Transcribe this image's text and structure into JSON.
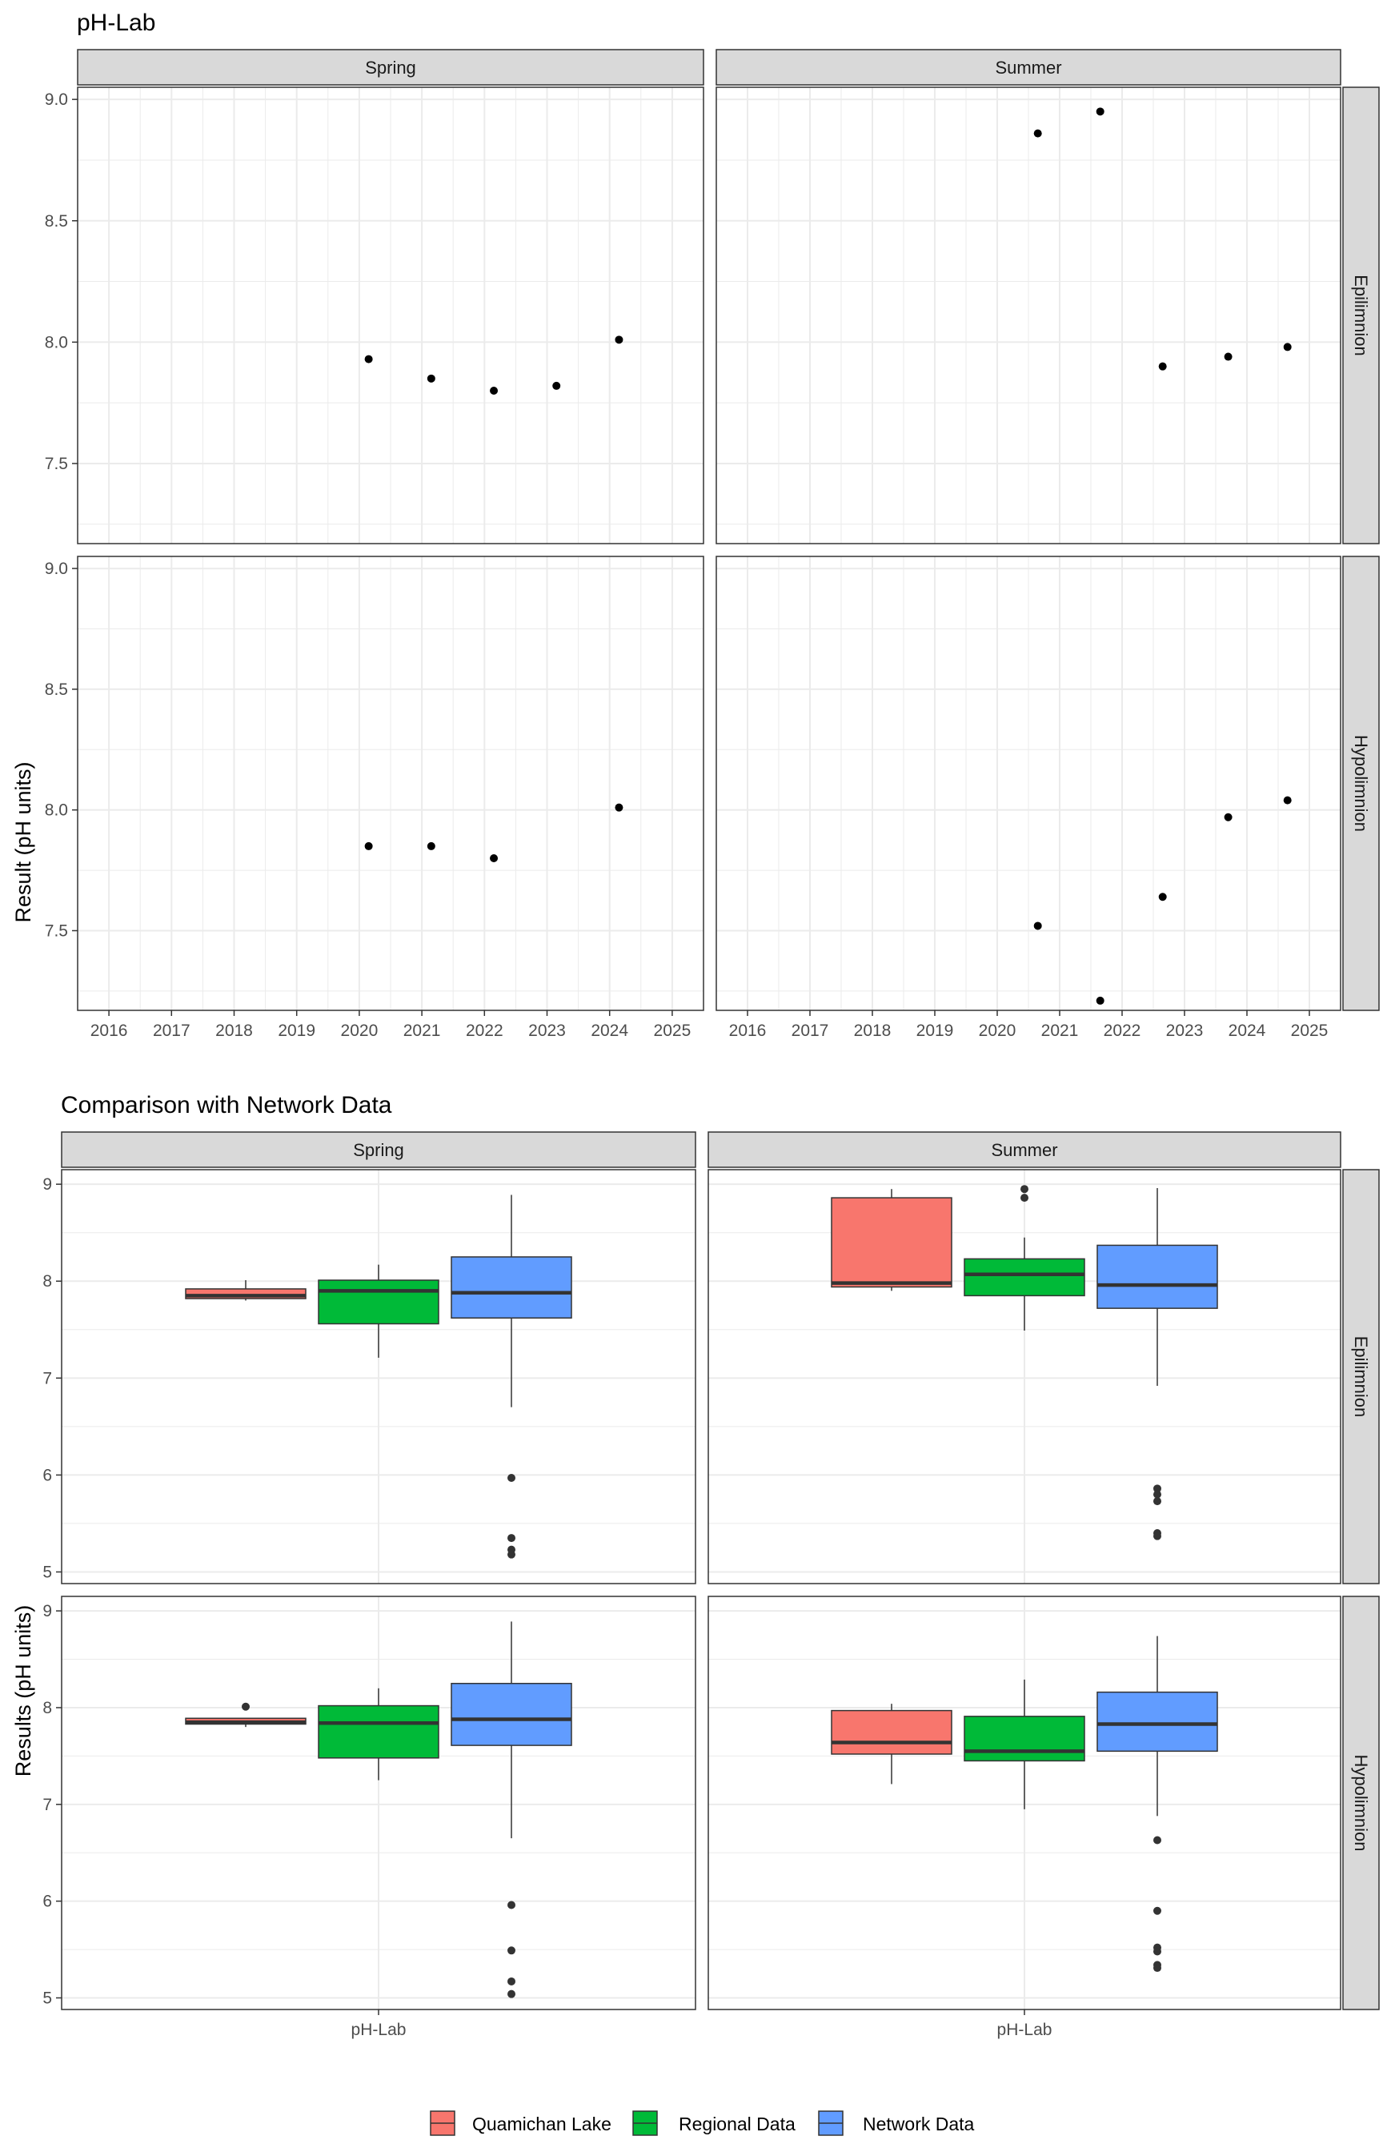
{
  "colors": {
    "strip_fill": "#d9d9d9",
    "grid": "#ebebeb",
    "point": "#000000",
    "box_outlier": "#333333",
    "quamichan": "#F8766D",
    "regional": "#00BA38",
    "network": "#619CFF"
  },
  "chart_data": [
    {
      "type": "scatter",
      "title": "pH-Lab",
      "ylabel": "Result (pH units)",
      "xlabel": "",
      "xlim": [
        2015.5,
        2025.5
      ],
      "ylim": [
        7.17,
        9.05
      ],
      "x_ticks": [
        "2016",
        "2017",
        "2018",
        "2019",
        "2020",
        "2021",
        "2022",
        "2023",
        "2024",
        "2025"
      ],
      "y_ticks": [
        "7.5",
        "8.0",
        "8.5",
        "9.0"
      ],
      "grid": true,
      "columns": [
        "Spring",
        "Summer"
      ],
      "rows": [
        "Epilimnion",
        "Hypolimnion"
      ],
      "panels": [
        {
          "column": "Spring",
          "row": "Epilimnion",
          "points": [
            [
              2020.15,
              7.93
            ],
            [
              2021.15,
              7.85
            ],
            [
              2022.15,
              7.8
            ],
            [
              2023.15,
              7.82
            ],
            [
              2024.15,
              8.01
            ]
          ]
        },
        {
          "column": "Summer",
          "row": "Epilimnion",
          "points": [
            [
              2020.65,
              8.86
            ],
            [
              2021.65,
              8.95
            ],
            [
              2022.65,
              7.9
            ],
            [
              2023.7,
              7.94
            ],
            [
              2024.65,
              7.98
            ]
          ]
        },
        {
          "column": "Spring",
          "row": "Hypolimnion",
          "points": [
            [
              2020.15,
              7.85
            ],
            [
              2021.15,
              7.85
            ],
            [
              2022.15,
              7.8
            ],
            [
              2024.15,
              8.01
            ]
          ]
        },
        {
          "column": "Summer",
          "row": "Hypolimnion",
          "points": [
            [
              2020.65,
              7.52
            ],
            [
              2021.65,
              7.21
            ],
            [
              2022.65,
              7.64
            ],
            [
              2023.7,
              7.97
            ],
            [
              2024.65,
              8.04
            ]
          ]
        }
      ]
    },
    {
      "type": "box",
      "title": "Comparison with Network Data",
      "ylabel": "Results (pH units)",
      "xlabel": "",
      "category": "pH-Lab",
      "ylim": [
        4.88,
        9.15
      ],
      "y_ticks": [
        "5",
        "6",
        "7",
        "8",
        "9"
      ],
      "grid": true,
      "columns": [
        "Spring",
        "Summer"
      ],
      "rows": [
        "Epilimnion",
        "Hypolimnion"
      ],
      "series": [
        "Quamichan Lake",
        "Regional Data",
        "Network Data"
      ],
      "legend_position": "bottom",
      "panels": [
        {
          "column": "Spring",
          "row": "Epilimnion",
          "boxes": [
            {
              "series": "Quamichan Lake",
              "min": 7.8,
              "q1": 7.82,
              "median": 7.85,
              "q3": 7.92,
              "max": 8.01,
              "outliers": []
            },
            {
              "series": "Regional Data",
              "min": 7.21,
              "q1": 7.56,
              "median": 7.9,
              "q3": 8.01,
              "max": 8.17,
              "outliers": []
            },
            {
              "series": "Network Data",
              "min": 6.7,
              "q1": 7.62,
              "median": 7.88,
              "q3": 8.25,
              "max": 8.89,
              "outliers": [
                5.97,
                5.35,
                5.23,
                5.18
              ]
            }
          ]
        },
        {
          "column": "Summer",
          "row": "Epilimnion",
          "boxes": [
            {
              "series": "Quamichan Lake",
              "min": 7.9,
              "q1": 7.94,
              "median": 7.98,
              "q3": 8.86,
              "max": 8.95,
              "outliers": []
            },
            {
              "series": "Regional Data",
              "min": 7.49,
              "q1": 7.85,
              "median": 8.07,
              "q3": 8.23,
              "max": 8.45,
              "outliers": [
                8.95,
                8.86
              ]
            },
            {
              "series": "Network Data",
              "min": 6.92,
              "q1": 7.72,
              "median": 7.96,
              "q3": 8.37,
              "max": 8.96,
              "outliers": [
                5.86,
                5.8,
                5.73,
                5.4,
                5.37
              ]
            }
          ]
        },
        {
          "column": "Spring",
          "row": "Hypolimnion",
          "boxes": [
            {
              "series": "Quamichan Lake",
              "min": 7.8,
              "q1": 7.83,
              "median": 7.85,
              "q3": 7.89,
              "max": 7.89,
              "outliers": [
                8.01
              ]
            },
            {
              "series": "Regional Data",
              "min": 7.25,
              "q1": 7.48,
              "median": 7.84,
              "q3": 8.02,
              "max": 8.2,
              "outliers": []
            },
            {
              "series": "Network Data",
              "min": 6.65,
              "q1": 7.61,
              "median": 7.88,
              "q3": 8.25,
              "max": 8.89,
              "outliers": [
                5.96,
                5.49,
                5.17,
                5.04
              ]
            }
          ]
        },
        {
          "column": "Summer",
          "row": "Hypolimnion",
          "boxes": [
            {
              "series": "Quamichan Lake",
              "min": 7.21,
              "q1": 7.52,
              "median": 7.64,
              "q3": 7.97,
              "max": 8.04,
              "outliers": []
            },
            {
              "series": "Regional Data",
              "min": 6.95,
              "q1": 7.45,
              "median": 7.55,
              "q3": 7.91,
              "max": 8.29,
              "outliers": []
            },
            {
              "series": "Network Data",
              "min": 6.88,
              "q1": 7.55,
              "median": 7.83,
              "q3": 8.16,
              "max": 8.74,
              "outliers": [
                6.63,
                5.9,
                5.52,
                5.48,
                5.34,
                5.31
              ]
            }
          ]
        }
      ]
    }
  ]
}
